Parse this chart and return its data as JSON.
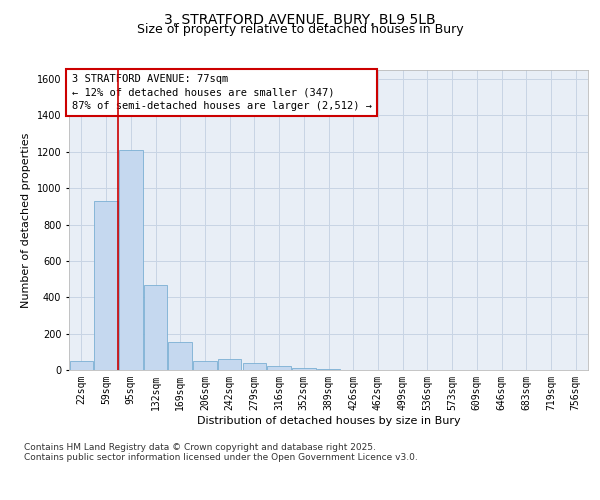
{
  "title1": "3, STRATFORD AVENUE, BURY, BL9 5LB",
  "title2": "Size of property relative to detached houses in Bury",
  "xlabel": "Distribution of detached houses by size in Bury",
  "ylabel": "Number of detached properties",
  "categories": [
    "22sqm",
    "59sqm",
    "95sqm",
    "132sqm",
    "169sqm",
    "206sqm",
    "242sqm",
    "279sqm",
    "316sqm",
    "352sqm",
    "389sqm",
    "426sqm",
    "462sqm",
    "499sqm",
    "536sqm",
    "573sqm",
    "609sqm",
    "646sqm",
    "683sqm",
    "719sqm",
    "756sqm"
  ],
  "bar_heights": [
    50,
    930,
    1210,
    470,
    155,
    50,
    60,
    40,
    20,
    10,
    5,
    0,
    0,
    0,
    0,
    0,
    0,
    0,
    0,
    0,
    0
  ],
  "bar_color": "#c5d8ef",
  "bar_edge_color": "#7aafd4",
  "grid_color": "#c8d4e4",
  "background_color": "#e8eef6",
  "vline_color": "#cc0000",
  "vline_pos": 1.5,
  "annotation_text": "3 STRATFORD AVENUE: 77sqm\n← 12% of detached houses are smaller (347)\n87% of semi-detached houses are larger (2,512) →",
  "annotation_box_color": "#ffffff",
  "annotation_box_edge": "#cc0000",
  "ylim": [
    0,
    1650
  ],
  "yticks": [
    0,
    200,
    400,
    600,
    800,
    1000,
    1200,
    1400,
    1600
  ],
  "footer": "Contains HM Land Registry data © Crown copyright and database right 2025.\nContains public sector information licensed under the Open Government Licence v3.0.",
  "title_fontsize": 10,
  "subtitle_fontsize": 9,
  "axis_label_fontsize": 8,
  "tick_fontsize": 7,
  "annotation_fontsize": 7.5,
  "footer_fontsize": 6.5
}
